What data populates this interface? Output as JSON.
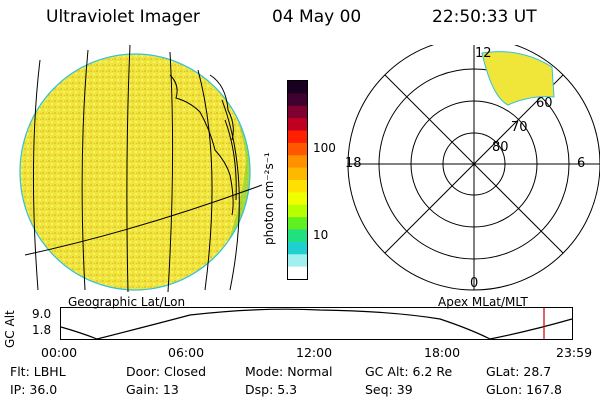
{
  "header": {
    "instrument": "Ultraviolet Imager",
    "date": "04 May 00",
    "time": "22:50:33 UT"
  },
  "colorbar": {
    "unit_label": "photon cm⁻²s⁻¹",
    "tick_100": "100",
    "tick_10": "10",
    "colors_top_to_bottom": [
      "#1a0020",
      "#400030",
      "#800030",
      "#c00020",
      "#ff2000",
      "#ff5800",
      "#ff9000",
      "#ffb800",
      "#ffe000",
      "#f0ff00",
      "#b8ff00",
      "#60f020",
      "#20e080",
      "#20d0d0",
      "#a0f0f0",
      "#ffffff"
    ]
  },
  "left_panel": {
    "label": "Geographic Lat/Lon"
  },
  "right_panel": {
    "label": "Apex MLat/MLT",
    "mlt_12": "12",
    "mlt_18": "18",
    "mlt_6": "6",
    "mlt_0": "0",
    "mlat_60": "60",
    "mlat_70": "70",
    "mlat_80": "80"
  },
  "altitude_plot": {
    "axis_label": "GC Alt",
    "ymax_label": "9.0",
    "ymin_label": "1.8",
    "ticks": [
      "00:00",
      "06:00",
      "12:00",
      "18:00",
      "23:59"
    ],
    "marker_color": "#cc0000"
  },
  "footer": {
    "flt": "Flt: LBHL",
    "ip": "IP: 36.0",
    "door": "Door: Closed",
    "gain": "Gain: 13",
    "mode": "Mode: Normal",
    "dsp": "Dsp:    5.3",
    "gcalt": "GC Alt: 6.2 Re",
    "seq": "Seq: 39",
    "glat": "GLat:  28.7",
    "glon": "GLon: 167.8"
  }
}
